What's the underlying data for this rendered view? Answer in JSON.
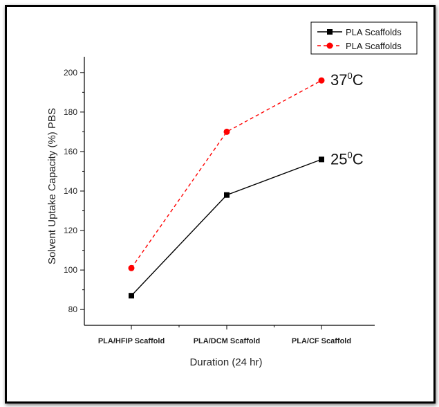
{
  "chart_data": {
    "type": "line",
    "categories": [
      "PLA/HFIP Scaffold",
      "PLA/DCM Scaffold",
      "PLA/CF Scaffold"
    ],
    "series": [
      {
        "name": "PLA Scaffolds",
        "values": [
          87,
          138,
          156
        ],
        "color": "#000000",
        "marker": "square",
        "line_style": "solid",
        "annotation": {
          "main": "25",
          "sup": "0",
          "unit": "C"
        }
      },
      {
        "name": "PLA Scaffolds",
        "values": [
          101,
          170,
          196
        ],
        "color": "#ff0000",
        "marker": "circle",
        "line_style": "dashed",
        "annotation": {
          "main": "37",
          "sup": "0",
          "unit": "C"
        }
      }
    ],
    "ylim": [
      72,
      208
    ],
    "yticks": [
      "80",
      "100",
      "120",
      "140",
      "160",
      "180",
      "200"
    ],
    "ylabel": "Solvent Uptake Capacity (%) PBS",
    "xlabel": "Duration (24 hr)",
    "legend_position": "top-right",
    "grid": false
  }
}
